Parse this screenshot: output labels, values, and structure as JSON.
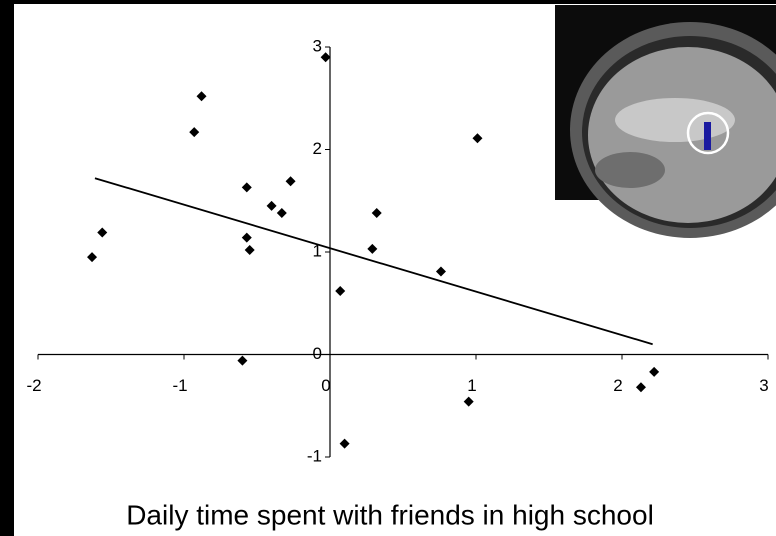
{
  "chart_data": {
    "type": "scatter",
    "x_label": "Daily time spent with friends in high school",
    "x": [
      -1.63,
      -1.56,
      -0.93,
      -0.88,
      -0.6,
      -0.57,
      -0.57,
      -0.55,
      -0.4,
      -0.33,
      -0.27,
      -0.03,
      0.07,
      0.1,
      0.29,
      0.32,
      0.76,
      0.95,
      1.01,
      2.13,
      2.22
    ],
    "values": [
      0.95,
      1.19,
      2.17,
      2.52,
      -0.06,
      1.14,
      1.63,
      1.02,
      1.45,
      1.38,
      1.69,
      2.9,
      0.62,
      -0.87,
      1.03,
      1.38,
      0.81,
      -0.46,
      2.11,
      -0.32,
      -0.17
    ],
    "color": "#000000",
    "trendline": {
      "x": [
        -1.61,
        2.21
      ],
      "y": [
        1.72,
        0.1
      ]
    },
    "xlim": [
      -2,
      3
    ],
    "xticks": [
      -2,
      -1,
      0,
      1,
      2,
      3
    ],
    "ylim": [
      -1,
      3
    ],
    "yticks": [
      -1,
      0,
      1,
      2,
      3
    ],
    "grid": false
  }
}
